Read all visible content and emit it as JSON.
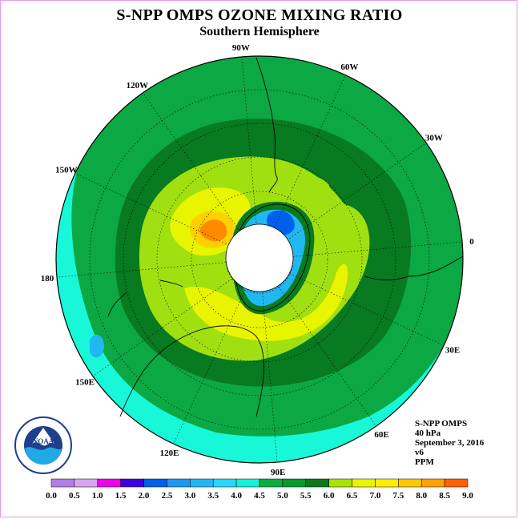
{
  "title": "S-NPP OMPS OZONE MIXING RATIO",
  "subtitle": "Southern Hemisphere",
  "longitude_labels": [
    "90W",
    "60W",
    "30W",
    "0",
    "30E",
    "60E",
    "90E",
    "120E",
    "150E",
    "180",
    "150W",
    "120W"
  ],
  "info": {
    "instrument": "S-NPP OMPS",
    "level": "40 hPa",
    "date": "September 3, 2016",
    "version": "v6",
    "units": "PPM"
  },
  "logo": {
    "text": "NOAA"
  },
  "colorbar": {
    "ticks": [
      "0.0",
      "0.5",
      "1.0",
      "1.5",
      "2.0",
      "2.5",
      "3.0",
      "3.5",
      "4.0",
      "4.5",
      "5.0",
      "5.5",
      "6.0",
      "6.5",
      "7.0",
      "7.5",
      "8.0",
      "8.5",
      "9.0"
    ],
    "colors": [
      "#b07ee8",
      "#d8a6ee",
      "#ee00ee",
      "#3c00e0",
      "#0060ee",
      "#1f98f0",
      "#21b8f2",
      "#27d6f8",
      "#18f0d8",
      "#0cac40",
      "#0a9a2a",
      "#0a7a1a",
      "#a8e400",
      "#e8f600",
      "#ffee00",
      "#ffc800",
      "#ffa000",
      "#ff6000",
      "#ff0000",
      "#8a5a3c"
    ]
  },
  "map_colors": {
    "outer": "#18f8d8",
    "band1": "#0ca843",
    "band2": "#087a20",
    "band3": "#a0e010",
    "band4": "#e8f400",
    "hot1": "#ffd000",
    "hot2": "#ff8a00",
    "core": "#ffffff"
  }
}
